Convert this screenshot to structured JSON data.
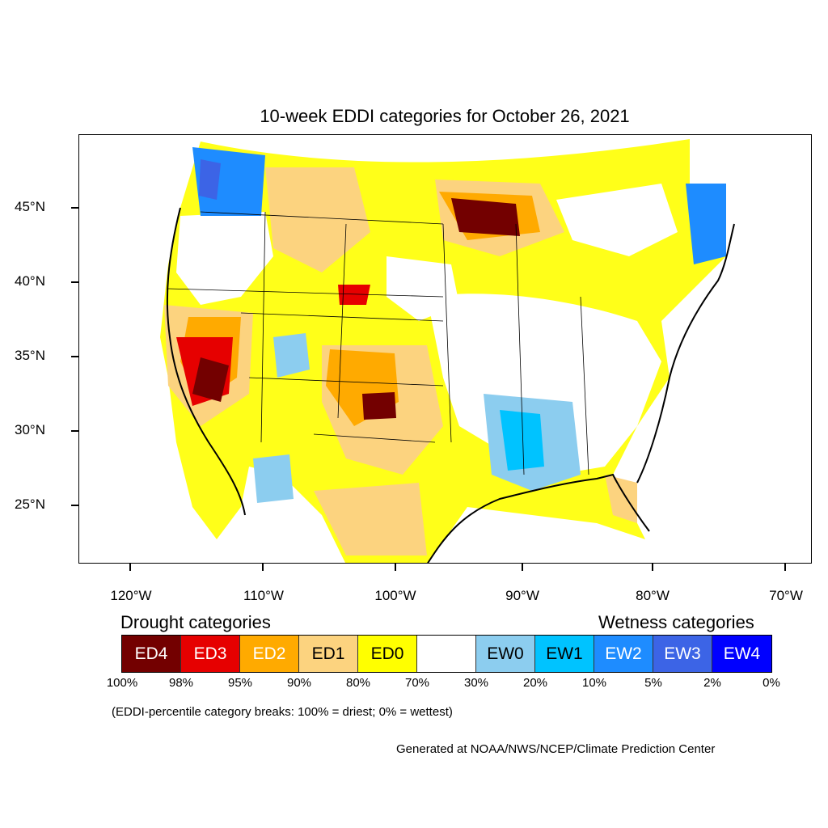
{
  "title": "10-week EDDI categories for October 26, 2021",
  "map": {
    "y_labels": [
      "45°N",
      "40°N",
      "35°N",
      "30°N",
      "25°N"
    ],
    "x_labels": [
      "120°W",
      "110°W",
      "100°W",
      "90°W",
      "80°W",
      "70°W"
    ]
  },
  "legend": {
    "drought_heading": "Drought categories",
    "wetness_heading": "Wetness categories",
    "categories": [
      {
        "label": "ED4",
        "color": "#730000"
      },
      {
        "label": "ED3",
        "color": "#e60000"
      },
      {
        "label": "ED2",
        "color": "#ffaa00"
      },
      {
        "label": "ED1",
        "color": "#fcd37f"
      },
      {
        "label": "ED0",
        "color": "#ffff00"
      },
      {
        "label": "",
        "color": "#ffffff"
      },
      {
        "label": "EW0",
        "color": "#8ccdef"
      },
      {
        "label": "EW1",
        "color": "#00c3ff"
      },
      {
        "label": "EW2",
        "color": "#1e8cff"
      },
      {
        "label": "EW3",
        "color": "#3c64e6"
      },
      {
        "label": "EW4",
        "color": "#0000ff"
      }
    ],
    "percentiles": [
      "100%",
      "98%",
      "95%",
      "90%",
      "80%",
      "70%",
      "30%",
      "20%",
      "10%",
      "5%",
      "2%",
      "0%"
    ]
  },
  "note": "(EDDI-percentile category breaks: 100% = driest; 0% = wettest)",
  "credit": "Generated at NOAA/NWS/NCEP/Climate Prediction Center"
}
